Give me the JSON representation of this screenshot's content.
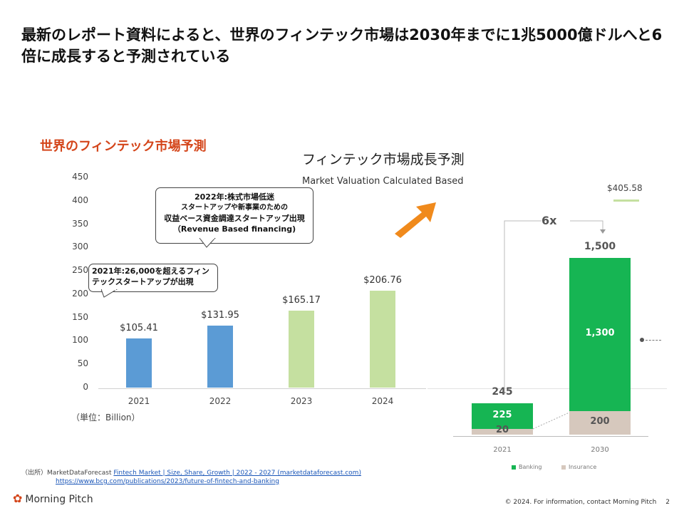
{
  "header": {
    "title": "最新のレポート資料によると、世界のフィンテック市場は2030年までに1兆5000億ドルへと6倍に成長すると予測されている"
  },
  "left_chart": {
    "heading": "世界のフィンテック市場予測",
    "unit": "（単位：Billion）",
    "callout_2022": {
      "line1": "2022年:株式市場低迷",
      "line2": "スタートアップや新事業のための",
      "line3": "収益ベース資金調達スタートアップ出現",
      "line4": "（Revenue Based financing)"
    },
    "callout_2021": {
      "line1": "2021年:26,000を超えるフィン",
      "line2": "テックスタートアップが出現"
    }
  },
  "right_chart": {
    "heading": "フィンテック市場成長予測",
    "subheading": "Market Valuation Calculated Based",
    "partial_label": "$405.58",
    "multiplier": "6x",
    "legend": [
      {
        "name": "Banking",
        "color": "#16b553"
      },
      {
        "name": "Insurance",
        "color": "#d6c8bd"
      }
    ]
  },
  "chart_data": [
    {
      "type": "bar",
      "title": "世界のフィンテック市場予測",
      "categories": [
        "2021",
        "2022",
        "2023",
        "2024"
      ],
      "values": [
        105.41,
        131.95,
        165.17,
        206.76
      ],
      "value_labels": [
        "$105.41",
        "$131.95",
        "$165.17",
        "$206.76"
      ],
      "colors": [
        "#5b9bd5",
        "#5b9bd5",
        "#c5e0a0",
        "#c5e0a0"
      ],
      "ylim": [
        0,
        450
      ],
      "yticks": [
        0,
        50,
        100,
        150,
        200,
        250,
        300,
        350,
        400,
        450
      ],
      "ylabel": "（単位：Billion）"
    },
    {
      "type": "bar",
      "title": "フィンテック市場成長予測",
      "categories": [
        "2021",
        "2030"
      ],
      "series": [
        {
          "name": "Insurance",
          "values": [
            20,
            200
          ],
          "labels": [
            "20",
            "200"
          ],
          "color": "#d6c8bd"
        },
        {
          "name": "Banking",
          "values": [
            225,
            1300
          ],
          "labels": [
            "225",
            "1,300"
          ],
          "color": "#16b553"
        }
      ],
      "totals": [
        245,
        1500
      ],
      "total_labels": [
        "245",
        "1,500"
      ],
      "ylim": [
        0,
        1500
      ]
    }
  ]
}
